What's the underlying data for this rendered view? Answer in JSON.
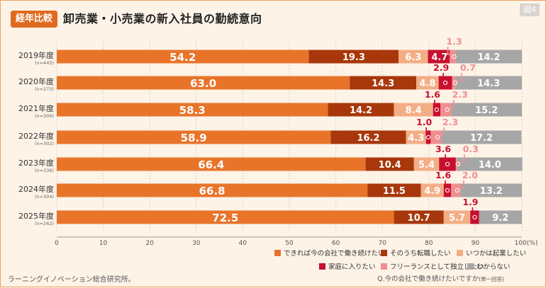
{
  "header": {
    "badge": "経年比較",
    "title": "卸売業・小売業の新入社員の勤続意向",
    "figure_no": "図4"
  },
  "footer": {
    "source": "ラーニングイノベーション総合研究所。",
    "question": "Q.今の会社で働き続けたいですか",
    "question_note": "(単一回答)"
  },
  "colors": {
    "continue": "#e8742a",
    "change_job": "#a8380b",
    "start_business": "#f4ae86",
    "family": "#c8102e",
    "freelance": "#f08e92",
    "unknown": "#a6a6a6"
  },
  "chart_data": {
    "type": "bar",
    "orientation": "horizontal",
    "stacked": true,
    "xlim": [
      0,
      100
    ],
    "x_ticks": [
      "0",
      "10",
      "20",
      "30",
      "40",
      "50",
      "60",
      "70",
      "80",
      "90",
      "100(%)"
    ],
    "grid": true,
    "legend_position": "bottom-right",
    "categories": [
      {
        "label": "2019年度",
        "n": "(n=445)"
      },
      {
        "label": "2020年度",
        "n": "(n=273)"
      },
      {
        "label": "2021年度",
        "n": "(n=309)"
      },
      {
        "label": "2022年度",
        "n": "(n=302)"
      },
      {
        "label": "2023年度",
        "n": "(n=336)"
      },
      {
        "label": "2024年度",
        "n": "(n=304)"
      },
      {
        "label": "2025年度",
        "n": "(n=262)"
      }
    ],
    "series": [
      {
        "name": "できれば今の会社で働き続けたい",
        "color_key": "continue",
        "values": [
          54.2,
          63.0,
          58.3,
          58.9,
          66.4,
          66.8,
          72.5
        ],
        "labels": [
          "54.2",
          "63.0",
          "58.3",
          "58.9",
          "66.4",
          "66.8",
          "72.5"
        ]
      },
      {
        "name": "そのうち転職したい",
        "color_key": "change_job",
        "values": [
          19.3,
          14.3,
          14.2,
          16.2,
          10.4,
          11.5,
          10.7
        ],
        "labels": [
          "19.3",
          "14.3",
          "14.2",
          "16.2",
          "10.4",
          "11.5",
          "10.7"
        ]
      },
      {
        "name": "いつかは起業したい",
        "color_key": "start_business",
        "values": [
          6.3,
          4.8,
          8.4,
          4.3,
          5.4,
          4.9,
          5.7
        ],
        "labels": [
          "6.3",
          "4.8",
          "8.4",
          "4.3",
          "5.4",
          "4.9",
          "5.7"
        ]
      },
      {
        "name": "家庭に入りたい",
        "color_key": "family",
        "values": [
          4.7,
          2.9,
          1.6,
          1.0,
          3.6,
          1.6,
          1.9
        ],
        "labels": [
          "4.7",
          "2.9",
          "1.6",
          "1.0",
          "3.6",
          "1.6",
          "1.9"
        ]
      },
      {
        "name": "フリーランスとして独立したい",
        "color_key": "freelance",
        "values": [
          1.3,
          0.7,
          2.3,
          2.3,
          0.3,
          2.0,
          0.0
        ],
        "labels": [
          "1.3",
          "0.7",
          "2.3",
          "2.3",
          "0.3",
          "2.0",
          ""
        ]
      },
      {
        "name": "わからない",
        "color_key": "unknown",
        "values": [
          14.2,
          14.3,
          15.2,
          17.2,
          14.0,
          13.2,
          9.2
        ],
        "labels": [
          "14.2",
          "14.3",
          "15.2",
          "17.2",
          "14.0",
          "13.2",
          "9.2"
        ]
      }
    ]
  }
}
